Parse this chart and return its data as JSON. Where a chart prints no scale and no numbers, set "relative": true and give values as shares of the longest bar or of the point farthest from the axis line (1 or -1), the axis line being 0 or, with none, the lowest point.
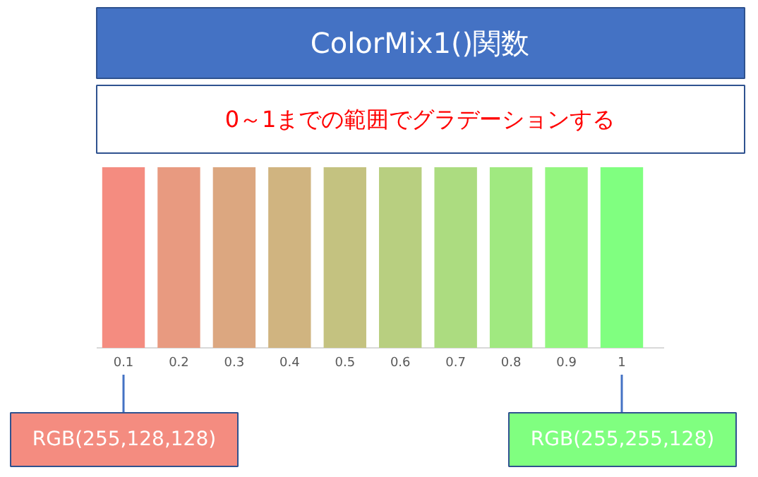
{
  "chart_data": {
    "type": "bar",
    "title": "ColorMix1()関数",
    "subtitle": "0～1までの範囲でグラデーションする",
    "categories": [
      "0.1",
      "0.2",
      "0.3",
      "0.4",
      "0.5",
      "0.6",
      "0.7",
      "0.8",
      "0.9",
      "1"
    ],
    "values": [
      1,
      1,
      1,
      1,
      1,
      1,
      1,
      1,
      1,
      1
    ],
    "colors": [
      "#f48c80",
      "#e89a80",
      "#dca780",
      "#d0b480",
      "#c4c280",
      "#b8cf80",
      "#acdc80",
      "#a0e980",
      "#94f680",
      "#80ff80"
    ],
    "relative": true,
    "annotations": [
      {
        "text": "RGB(255,128,128)",
        "x": "0.1"
      },
      {
        "text": "RGB(255,255,128)",
        "x": "1"
      }
    ]
  }
}
